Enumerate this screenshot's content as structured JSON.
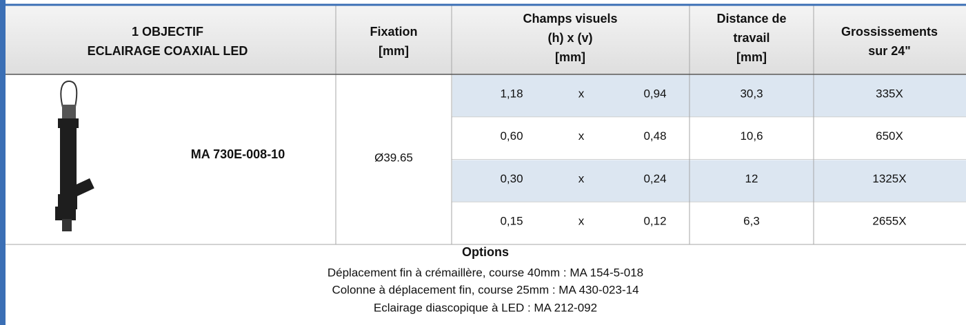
{
  "header": {
    "product": [
      "1 OBJECTIF",
      "ECLAIRAGE COAXIAL LED"
    ],
    "fixation": [
      "Fixation",
      "[mm]"
    ],
    "fields": [
      "Champs visuels",
      "(h) x (v)",
      "[mm]"
    ],
    "distance": [
      "Distance de",
      "travail",
      "[mm]"
    ],
    "magnification": [
      "Grossissements",
      "sur 24\""
    ]
  },
  "product": {
    "name": "MA 730E-008-10",
    "fixation": "Ø39.65"
  },
  "table": {
    "rows": [
      [
        "1,18",
        "x",
        "0,94",
        "30,3",
        "335X"
      ],
      [
        "0,60",
        "x",
        "0,48",
        "10,6",
        "650X"
      ],
      [
        "0,30",
        "x",
        "0,24",
        "12",
        "1325X"
      ],
      [
        "0,15",
        "x",
        "0,12",
        "6,3",
        "2655X"
      ]
    ]
  },
  "options": {
    "title": "Options",
    "items": [
      "Déplacement fin à crémaillère, course 40mm : MA 154-5-018",
      "Colonne à déplacement fin, course 25mm : MA 430-023-14",
      "Eclairage diascopique à LED : MA 212-092"
    ]
  }
}
